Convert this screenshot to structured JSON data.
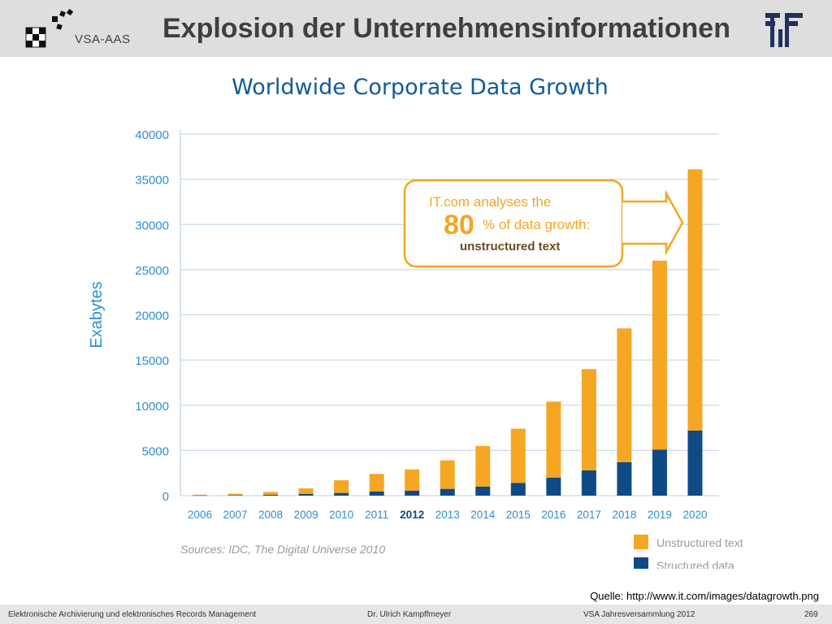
{
  "slide": {
    "brand": "VSA-AAS",
    "title": "Explosion der Unternehmensinformationen",
    "source_note": "Quelle: http://www.it.com/images/datagrowth.png"
  },
  "footer": {
    "left": "Elektronische Archivierung und elektronisches Records Management",
    "center": "Dr. Ulrich Kampffmeyer",
    "right": "VSA Jahresversammlung 2012",
    "page": "269"
  },
  "chart_data": {
    "type": "bar",
    "stacked": true,
    "title": "Worldwide Corporate Data Growth",
    "ylabel": "Exabytes",
    "xlabel": "",
    "ylim": [
      0,
      40000
    ],
    "yticks": [
      0,
      5000,
      10000,
      15000,
      20000,
      25000,
      30000,
      35000,
      40000
    ],
    "categories": [
      "2006",
      "2007",
      "2008",
      "2009",
      "2010",
      "2011",
      "2012",
      "2013",
      "2014",
      "2015",
      "2016",
      "2017",
      "2018",
      "2019",
      "2020"
    ],
    "highlight_category": "2012",
    "series": [
      {
        "name": "Structured data",
        "color": "#0e4a86",
        "values": [
          30,
          60,
          100,
          180,
          300,
          450,
          550,
          750,
          1000,
          1400,
          2000,
          2800,
          3700,
          5100,
          7200
        ]
      },
      {
        "name": "Unstructured text",
        "color": "#f5a623",
        "values": [
          70,
          140,
          300,
          620,
          1400,
          1950,
          2350,
          3150,
          4500,
          6000,
          8400,
          11200,
          14800,
          20900,
          28900
        ]
      }
    ],
    "legend_position": "bottom-right",
    "grid": true,
    "sources": "Sources: IDC, The Digital Universe 2010",
    "callout": {
      "line1": "IT.com analyses the",
      "big_number": "80",
      "line2": "% of data growth:",
      "line3": "unstructured text"
    }
  }
}
